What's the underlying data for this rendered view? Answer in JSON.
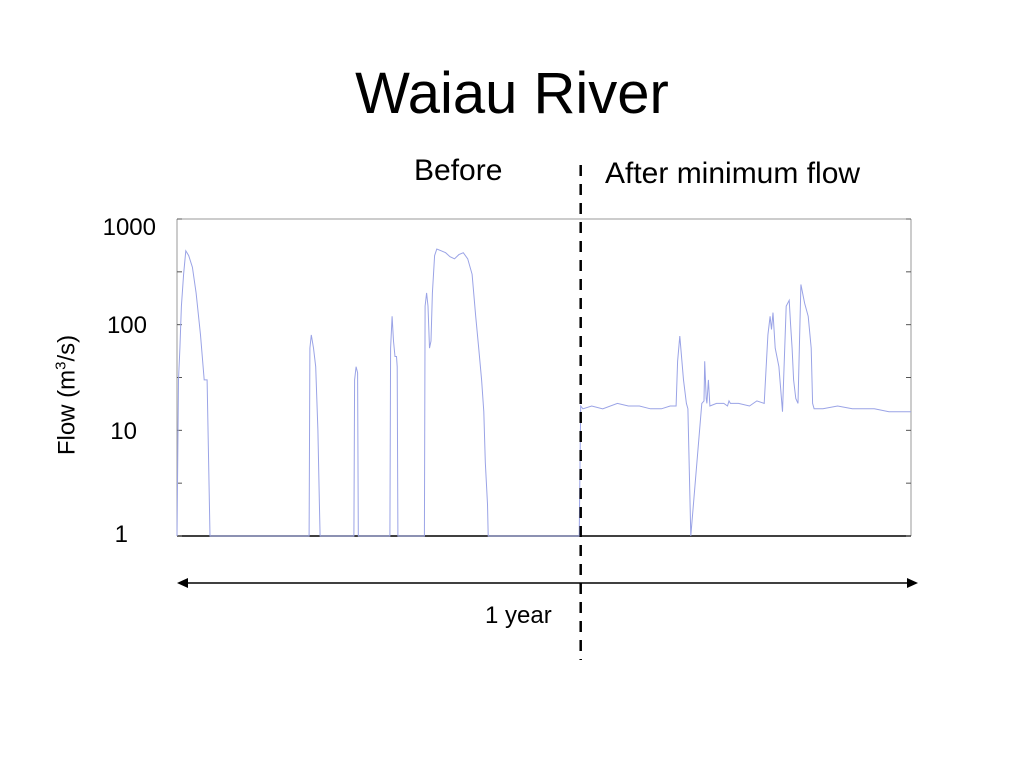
{
  "title": "Waiau River",
  "period_labels": {
    "before": "Before",
    "after": "After minimum flow"
  },
  "span_label": "1 year",
  "colors": {
    "series": "#9aa3e6",
    "axis": "#000000",
    "divider": "#000000"
  },
  "chart_data": {
    "type": "line",
    "title": "Waiau River",
    "ylabel": "Flow (m³/s)",
    "ylabel_parts": {
      "prefix": "Flow (m",
      "sup": "3",
      "suffix": "/s)"
    },
    "yscale": "log",
    "ylim": [
      1,
      1000
    ],
    "yticks": [
      "1000",
      "100",
      "10",
      "1"
    ],
    "xlim": [
      0,
      1
    ],
    "x_unit": "fraction of record",
    "grid": false,
    "divider_x": 0.55,
    "series": [
      {
        "x": [
          0,
          0.002,
          0.004,
          0.006,
          0.009,
          0.012,
          0.016,
          0.021,
          0.026,
          0.032,
          0.037,
          0.041,
          0.045,
          0.049,
          0.053,
          0.057,
          0.061,
          0.063,
          0.064,
          0.065,
          0.18,
          0.181,
          0.183,
          0.186,
          0.189,
          0.192,
          0.194,
          0.195,
          0.241,
          0.242,
          0.244,
          0.246,
          0.247,
          0.29,
          0.291,
          0.293,
          0.295,
          0.297,
          0.299,
          0.3,
          0.301,
          0.337,
          0.338,
          0.34,
          0.342,
          0.344,
          0.346,
          0.348,
          0.351,
          0.354,
          0.36,
          0.366,
          0.372,
          0.378,
          0.384,
          0.39,
          0.396,
          0.402,
          0.407,
          0.411,
          0.415,
          0.418,
          0.42,
          0.423,
          0.424,
          0.548,
          0.55,
          0.553,
          0.565,
          0.58,
          0.6,
          0.615,
          0.63,
          0.645,
          0.66,
          0.672,
          0.68,
          0.682,
          0.685,
          0.69,
          0.694,
          0.696,
          0.7,
          0.715,
          0.718,
          0.719,
          0.721,
          0.722,
          0.724,
          0.726,
          0.735,
          0.745,
          0.75,
          0.752,
          0.754,
          0.765,
          0.78,
          0.79,
          0.8,
          0.805,
          0.808,
          0.81,
          0.812,
          0.815,
          0.82,
          0.825,
          0.83,
          0.834,
          0.836,
          0.838,
          0.84,
          0.843,
          0.846,
          0.85,
          0.855,
          0.86,
          0.864,
          0.866,
          0.868,
          0.87,
          0.875,
          0.88,
          0.9,
          0.92,
          0.95,
          0.97,
          1.0
        ],
        "y": [
          1,
          30,
          60,
          150,
          300,
          500,
          450,
          350,
          200,
          80,
          30,
          30,
          1,
          1,
          1,
          1,
          1,
          1,
          1,
          1,
          1,
          60,
          80,
          60,
          40,
          10,
          2,
          1,
          1,
          30,
          40,
          35,
          1,
          1,
          60,
          120,
          70,
          50,
          50,
          40,
          1,
          1,
          150,
          200,
          150,
          60,
          70,
          200,
          450,
          520,
          500,
          480,
          440,
          420,
          460,
          480,
          420,
          300,
          120,
          60,
          30,
          15,
          5,
          2,
          1,
          1,
          17,
          16,
          17,
          16,
          18,
          17,
          17,
          16,
          16,
          17,
          17,
          45,
          78,
          30,
          18,
          16,
          1,
          18,
          19,
          45,
          20,
          18,
          30,
          17,
          18,
          18,
          17,
          19,
          18,
          18,
          17,
          19,
          18,
          80,
          120,
          90,
          130,
          60,
          40,
          15,
          150,
          170,
          100,
          60,
          30,
          20,
          18,
          240,
          160,
          120,
          60,
          18,
          16,
          16,
          16,
          16,
          17,
          16,
          16,
          15,
          15
        ]
      }
    ]
  }
}
